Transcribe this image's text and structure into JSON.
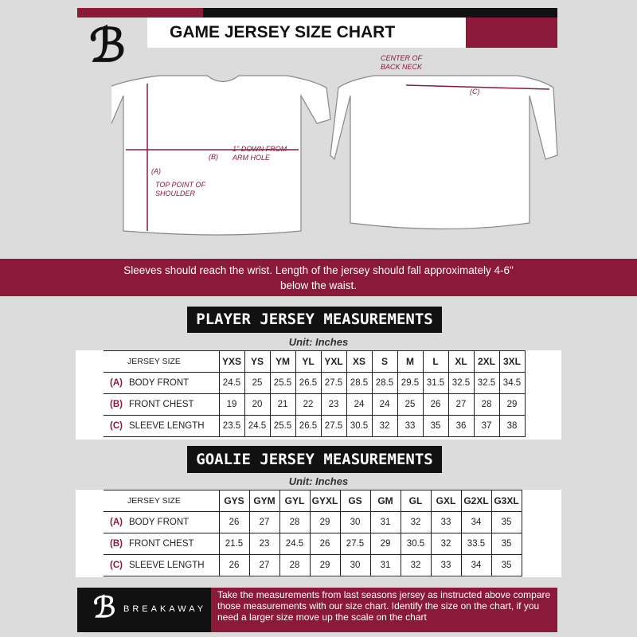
{
  "header": {
    "title": "GAME JERSEY SIZE CHART",
    "logo": "B"
  },
  "diagram": {
    "center_back_neck": "CENTER OF BACK NECK",
    "label_c": "(C)",
    "label_b": "(B)",
    "one_inch_down": "1\" DOWN FROM ARM HOLE",
    "label_a": "(A)",
    "top_point": "TOP POINT OF SHOULDER"
  },
  "band_text": "Sleeves should reach the wrist. Length of the jersey should fall approximately 4-6\" below the waist.",
  "player": {
    "title": "PLAYER JERSEY MEASUREMENTS",
    "unit": "Unit: Inches",
    "size_label": "JERSEY SIZE",
    "sizes": [
      "YXS",
      "YS",
      "YM",
      "YL",
      "YXL",
      "XS",
      "S",
      "M",
      "L",
      "XL",
      "2XL",
      "3XL"
    ],
    "rows": [
      {
        "key": "(A)",
        "label": "BODY FRONT",
        "values": [
          "24.5",
          "25",
          "25.5",
          "26.5",
          "27.5",
          "28.5",
          "28.5",
          "29.5",
          "31.5",
          "32.5",
          "32.5",
          "34.5"
        ]
      },
      {
        "key": "(B)",
        "label": "FRONT CHEST",
        "values": [
          "19",
          "20",
          "21",
          "22",
          "23",
          "24",
          "24",
          "25",
          "26",
          "27",
          "28",
          "29"
        ]
      },
      {
        "key": "(C)",
        "label": "SLEEVE LENGTH",
        "values": [
          "23.5",
          "24.5",
          "25.5",
          "26.5",
          "27.5",
          "30.5",
          "32",
          "33",
          "35",
          "36",
          "37",
          "38"
        ]
      }
    ]
  },
  "goalie": {
    "title": "GOALIE JERSEY MEASUREMENTS",
    "unit": "Unit: Inches",
    "size_label": "JERSEY SIZE",
    "sizes": [
      "GYS",
      "GYM",
      "GYL",
      "GYXL",
      "GS",
      "GM",
      "GL",
      "GXL",
      "G2XL",
      "G3XL"
    ],
    "rows": [
      {
        "key": "(A)",
        "label": "BODY FRONT",
        "values": [
          "26",
          "27",
          "28",
          "29",
          "30",
          "31",
          "32",
          "33",
          "34",
          "35"
        ]
      },
      {
        "key": "(B)",
        "label": "FRONT CHEST",
        "values": [
          "21.5",
          "23",
          "24.5",
          "26",
          "27.5",
          "29",
          "30.5",
          "32",
          "33.5",
          "35"
        ]
      },
      {
        "key": "(C)",
        "label": "SLEEVE LENGTH",
        "values": [
          "26",
          "27",
          "28",
          "29",
          "30",
          "31",
          "32",
          "33",
          "34",
          "35"
        ]
      }
    ]
  },
  "footer": {
    "brand": "BREAKAWAY",
    "logo": "B",
    "note": "Take the measurements from last seasons jersey as instructed above compare those measurements  with our size chart. Identify the size on the chart, if you need a larger size move up the scale on the chart"
  },
  "colors": {
    "accent": "#8b1a3a",
    "dark": "#111111",
    "background": "#dcdcdc"
  }
}
